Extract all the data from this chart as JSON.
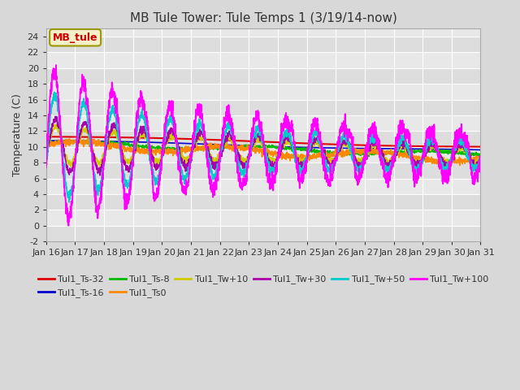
{
  "title": "MB Tule Tower: Tule Temps 1 (3/19/14-now)",
  "ylabel": "Temperature (C)",
  "xlabel": "",
  "ylim": [
    -2,
    25
  ],
  "yticks": [
    -2,
    0,
    2,
    4,
    6,
    8,
    10,
    12,
    14,
    16,
    18,
    20,
    22,
    24
  ],
  "xtick_labels": [
    "Jan 16",
    "Jan 17",
    "Jan 18",
    "Jan 19",
    "Jan 20",
    "Jan 21",
    "Jan 22",
    "Jan 23",
    "Jan 24",
    "Jan 25",
    "Jan 26",
    "Jan 27",
    "Jan 28",
    "Jan 29",
    "Jan 30",
    "Jan 31"
  ],
  "legend_label": "MB_tule",
  "series_names": [
    "Tul1_Ts-32",
    "Tul1_Ts-16",
    "Tul1_Ts-8",
    "Tul1_Ts0",
    "Tul1_Tw+10",
    "Tul1_Tw+30",
    "Tul1_Tw+50",
    "Tul1_Tw+100"
  ],
  "series_colors": [
    "#dd0000",
    "#0000cc",
    "#00bb00",
    "#ff8800",
    "#cccc00",
    "#aa00aa",
    "#00cccc",
    "#ff00ff"
  ],
  "background_color": "#d8d8d8",
  "plot_bg_color": "#e8e8e8",
  "grid_color": "#ffffff",
  "title_fontsize": 11,
  "axis_fontsize": 9,
  "tick_fontsize": 8,
  "legend_box_facecolor": "#f5f0c8",
  "legend_box_edgecolor": "#999900",
  "legend_box_textcolor": "#cc0000"
}
